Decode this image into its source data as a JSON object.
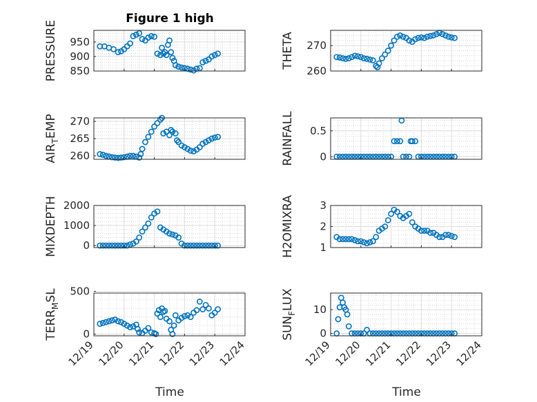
{
  "figure": {
    "title": "Figure 1 high",
    "xlabel": "Time",
    "x_ticks": [
      "12/19",
      "12/20",
      "12/21",
      "12/22",
      "12/23",
      "12/24"
    ],
    "marker_color": "#0072BD",
    "grid": true
  },
  "chart_data": [
    {
      "type": "scatter",
      "panel": "PRESSURE",
      "title": "Figure 1 high",
      "ylabel": "PRESSURE",
      "ylabel_parts": [
        "PRESSURE"
      ],
      "xlim": [
        19,
        24
      ],
      "ylim": [
        850,
        990
      ],
      "yticks": [
        850,
        900,
        950
      ],
      "x": [
        19.2,
        19.35,
        19.5,
        19.65,
        19.8,
        19.9,
        20.0,
        20.1,
        20.2,
        20.3,
        20.4,
        20.5,
        20.6,
        20.7,
        20.8,
        20.9,
        21.0,
        21.1,
        21.2,
        21.25,
        21.3,
        21.35,
        21.4,
        21.45,
        21.5,
        21.55,
        21.6,
        21.65,
        21.7,
        21.8,
        21.9,
        22.0,
        22.1,
        22.2,
        22.3,
        22.4,
        22.5,
        22.6,
        22.7,
        22.8,
        22.9,
        23.0,
        23.1
      ],
      "y": [
        935,
        935,
        930,
        925,
        915,
        918,
        925,
        935,
        945,
        970,
        975,
        980,
        960,
        955,
        965,
        970,
        968,
        910,
        905,
        930,
        910,
        915,
        905,
        940,
        955,
        915,
        895,
        885,
        870,
        865,
        862,
        860,
        858,
        855,
        852,
        858,
        860,
        880,
        885,
        890,
        900,
        905,
        910
      ]
    },
    {
      "type": "scatter",
      "panel": "THETA",
      "ylabel": "THETA",
      "ylabel_parts": [
        "THETA"
      ],
      "xlim": [
        19,
        24
      ],
      "ylim": [
        260,
        276
      ],
      "yticks": [
        260,
        270
      ],
      "x": [
        19.2,
        19.3,
        19.4,
        19.5,
        19.6,
        19.7,
        19.8,
        19.9,
        20.0,
        20.1,
        20.2,
        20.3,
        20.4,
        20.5,
        20.55,
        20.6,
        20.7,
        20.8,
        20.9,
        21.0,
        21.1,
        21.2,
        21.3,
        21.4,
        21.5,
        21.6,
        21.7,
        21.8,
        21.9,
        22.0,
        22.1,
        22.2,
        22.3,
        22.4,
        22.5,
        22.6,
        22.7,
        22.8,
        22.9,
        23.0,
        23.1
      ],
      "y": [
        265.5,
        265.3,
        265,
        264.8,
        265,
        265.5,
        266,
        265.8,
        265.5,
        265,
        264.8,
        264.5,
        264.2,
        262,
        261.5,
        263,
        265,
        266.5,
        268,
        270,
        272,
        273.5,
        274,
        273.5,
        273,
        272,
        271.5,
        272.5,
        273,
        273.2,
        273,
        273.5,
        273.8,
        274,
        274.5,
        275,
        274.5,
        274,
        273.5,
        273.2,
        273
      ]
    },
    {
      "type": "scatter",
      "panel": "AIR_TEMP",
      "ylabel": "AIR_TEMP",
      "ylabel_parts": [
        "AIR",
        "T",
        "EMP"
      ],
      "xlim": [
        19,
        24
      ],
      "ylim": [
        259,
        271
      ],
      "yticks": [
        260,
        265,
        270
      ],
      "x": [
        19.2,
        19.3,
        19.4,
        19.5,
        19.6,
        19.7,
        19.8,
        19.9,
        20.0,
        20.1,
        20.2,
        20.3,
        20.4,
        20.5,
        20.55,
        20.6,
        20.7,
        20.8,
        20.9,
        21.0,
        21.1,
        21.2,
        21.25,
        21.3,
        21.4,
        21.5,
        21.55,
        21.6,
        21.7,
        21.75,
        21.8,
        21.9,
        22.0,
        22.1,
        22.2,
        22.3,
        22.4,
        22.5,
        22.6,
        22.7,
        22.8,
        22.9,
        23.0,
        23.1
      ],
      "y": [
        260.5,
        260.3,
        260,
        259.8,
        259.6,
        259.5,
        259.4,
        259.5,
        259.6,
        259.8,
        260,
        260,
        259.8,
        259.5,
        260.5,
        262,
        264,
        265.5,
        267,
        268.5,
        269.5,
        270.5,
        271,
        266.5,
        267,
        266,
        267.5,
        267,
        266.5,
        264.5,
        264,
        263,
        262.5,
        262,
        261.5,
        261.3,
        261.8,
        262.5,
        263.5,
        264,
        264.5,
        265,
        265.3,
        265.5
      ]
    },
    {
      "type": "scatter",
      "panel": "RAINFALL",
      "ylabel": "RAINFALL",
      "ylabel_parts": [
        "RAINFALL"
      ],
      "xlim": [
        19,
        24
      ],
      "ylim": [
        -0.05,
        0.75
      ],
      "yticks": [
        0,
        0.5
      ],
      "x": [
        19.2,
        19.3,
        19.4,
        19.5,
        19.6,
        19.7,
        19.8,
        19.9,
        20.0,
        20.1,
        20.2,
        20.3,
        20.4,
        20.5,
        20.6,
        20.7,
        20.8,
        20.9,
        21.0,
        21.1,
        21.2,
        21.3,
        21.35,
        21.4,
        21.5,
        21.6,
        21.65,
        21.7,
        21.8,
        21.9,
        22.0,
        22.1,
        22.2,
        22.3,
        22.4,
        22.5,
        22.6,
        22.7,
        22.8,
        22.9,
        23.0,
        23.1
      ],
      "y": [
        0,
        0,
        0,
        0,
        0,
        0,
        0,
        0,
        0,
        0,
        0,
        0,
        0,
        0,
        0,
        0,
        0,
        0,
        0,
        0.3,
        0.3,
        0.3,
        0.7,
        0,
        0,
        0,
        0.3,
        0.3,
        0.3,
        0,
        0,
        0,
        0,
        0,
        0,
        0,
        0,
        0,
        0,
        0,
        0,
        0
      ]
    },
    {
      "type": "scatter",
      "panel": "MIXDEPTH",
      "ylabel": "MIXDEPTH",
      "ylabel_parts": [
        "MIXDEPTH"
      ],
      "xlim": [
        19,
        24
      ],
      "ylim": [
        -100,
        2000
      ],
      "yticks": [
        0,
        1000,
        2000
      ],
      "x": [
        19.2,
        19.3,
        19.4,
        19.5,
        19.6,
        19.7,
        19.8,
        19.9,
        20.0,
        20.1,
        20.2,
        20.3,
        20.4,
        20.5,
        20.6,
        20.7,
        20.8,
        20.9,
        21.0,
        21.1,
        21.2,
        21.3,
        21.4,
        21.5,
        21.6,
        21.7,
        21.8,
        21.9,
        22.0,
        22.1,
        22.2,
        22.3,
        22.4,
        22.5,
        22.6,
        22.7,
        22.8,
        22.9,
        23.0,
        23.1
      ],
      "y": [
        0,
        0,
        0,
        0,
        0,
        0,
        0,
        0,
        0,
        0,
        50,
        100,
        200,
        400,
        700,
        900,
        1100,
        1400,
        1600,
        1700,
        900,
        800,
        700,
        600,
        550,
        500,
        400,
        100,
        0,
        0,
        0,
        0,
        0,
        0,
        0,
        0,
        0,
        0,
        0,
        0
      ]
    },
    {
      "type": "scatter",
      "panel": "H2OMIXRA",
      "ylabel": "H2OMIXRA",
      "ylabel_parts": [
        "H2OMIXRA"
      ],
      "xlim": [
        19,
        24
      ],
      "ylim": [
        1,
        3
      ],
      "yticks": [
        1,
        2,
        3
      ],
      "x": [
        19.2,
        19.3,
        19.4,
        19.5,
        19.6,
        19.7,
        19.8,
        19.9,
        20.0,
        20.1,
        20.2,
        20.3,
        20.4,
        20.5,
        20.6,
        20.7,
        20.8,
        20.9,
        21.0,
        21.1,
        21.2,
        21.3,
        21.4,
        21.5,
        21.6,
        21.7,
        21.8,
        21.9,
        22.0,
        22.1,
        22.2,
        22.3,
        22.4,
        22.5,
        22.6,
        22.7,
        22.8,
        22.9,
        23.0,
        23.1
      ],
      "y": [
        1.5,
        1.4,
        1.4,
        1.4,
        1.4,
        1.4,
        1.35,
        1.3,
        1.3,
        1.25,
        1.2,
        1.25,
        1.3,
        1.5,
        1.8,
        1.9,
        2.0,
        2.3,
        2.6,
        2.8,
        2.7,
        2.5,
        2.4,
        2.5,
        2.6,
        2.2,
        2.0,
        1.9,
        1.8,
        1.8,
        1.8,
        1.7,
        1.7,
        1.6,
        1.5,
        1.5,
        1.6,
        1.6,
        1.55,
        1.5
      ]
    },
    {
      "type": "scatter",
      "panel": "TERR_MSL",
      "ylabel": "TERR_MSL",
      "ylabel_parts": [
        "TERR",
        "M",
        "SL"
      ],
      "xlim": [
        19,
        24
      ],
      "ylim": [
        -20,
        480
      ],
      "yticks": [
        0,
        500
      ],
      "x": [
        19.2,
        19.3,
        19.4,
        19.5,
        19.6,
        19.7,
        19.8,
        19.9,
        20.0,
        20.1,
        20.2,
        20.3,
        20.4,
        20.45,
        20.5,
        20.6,
        20.7,
        20.8,
        20.9,
        21.0,
        21.05,
        21.1,
        21.15,
        21.2,
        21.25,
        21.3,
        21.35,
        21.4,
        21.5,
        21.55,
        21.6,
        21.65,
        21.7,
        21.8,
        21.9,
        22.0,
        22.1,
        22.2,
        22.3,
        22.4,
        22.5,
        22.6,
        22.7,
        22.8,
        22.9,
        23.0,
        23.1
      ],
      "y": [
        120,
        130,
        140,
        150,
        160,
        170,
        150,
        140,
        120,
        100,
        80,
        90,
        110,
        60,
        20,
        10,
        40,
        70,
        20,
        10,
        0,
        240,
        280,
        200,
        300,
        260,
        270,
        180,
        150,
        50,
        0,
        100,
        220,
        160,
        190,
        210,
        220,
        200,
        250,
        280,
        380,
        290,
        340,
        300,
        220,
        250,
        290
      ]
    },
    {
      "type": "scatter",
      "panel": "SUN_FLUX",
      "ylabel": "SUN_FLUX",
      "ylabel_parts": [
        "SUN",
        "F",
        "LUX"
      ],
      "xlim": [
        19,
        24
      ],
      "ylim": [
        -1,
        17
      ],
      "yticks": [
        0,
        10
      ],
      "x": [
        19.2,
        19.25,
        19.3,
        19.35,
        19.4,
        19.45,
        19.5,
        19.55,
        19.6,
        19.7,
        19.8,
        19.9,
        20.0,
        20.1,
        20.2,
        20.3,
        20.4,
        20.5,
        20.6,
        20.7,
        20.8,
        20.9,
        21.0,
        21.1,
        21.2,
        21.3,
        21.4,
        21.5,
        21.6,
        21.7,
        21.8,
        21.9,
        22.0,
        22.1,
        22.2,
        22.3,
        22.4,
        22.5,
        22.6,
        22.7,
        22.8,
        22.9,
        23.0,
        23.1
      ],
      "y": [
        0,
        6,
        11,
        15,
        13,
        11,
        10,
        8,
        3,
        0,
        0,
        0,
        0,
        0,
        1.5,
        0,
        0,
        0,
        0,
        0,
        0,
        0,
        0,
        0,
        0,
        0,
        0,
        0,
        0,
        0,
        0,
        0,
        0,
        0,
        0,
        0,
        0,
        0,
        0,
        0,
        0,
        0,
        0,
        0
      ]
    }
  ]
}
